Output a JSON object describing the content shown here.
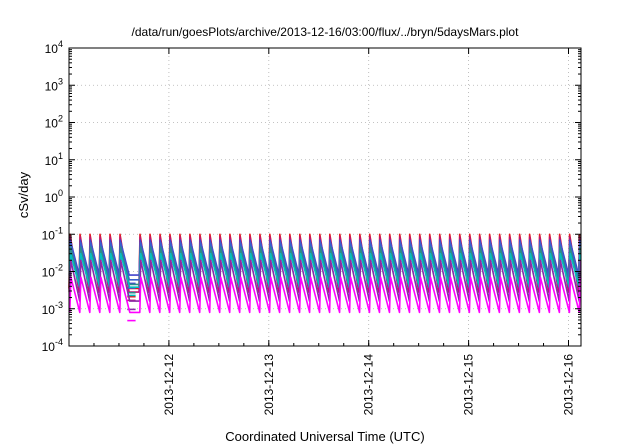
{
  "chart_data": {
    "type": "line",
    "title": "/data/run/goesPlots/archive/2013-12-16/03:00/flux/../bryn/5daysMars.plot",
    "xlabel": "Coordinated Universal Time (UTC)",
    "ylabel": "cSv/day",
    "yscale": "log",
    "ylim": [
      0.0001,
      10000
    ],
    "y_tick_labels": [
      {
        "base": "10",
        "exp": "-4"
      },
      {
        "base": "10",
        "exp": "-3"
      },
      {
        "base": "10",
        "exp": "-2"
      },
      {
        "base": "10",
        "exp": "-1"
      },
      {
        "base": "10",
        "exp": "0"
      },
      {
        "base": "10",
        "exp": "1"
      },
      {
        "base": "10",
        "exp": "2"
      },
      {
        "base": "10",
        "exp": "3"
      },
      {
        "base": "10",
        "exp": "4"
      }
    ],
    "xlim": [
      "2013-12-11T00:00",
      "2013-12-16T03:00"
    ],
    "x_tick_labels": [
      "2013-12-12",
      "2013-12-13",
      "2013-12-14",
      "2013-12-15",
      "2013-12-16"
    ],
    "grid": true,
    "legend": "none",
    "sawtooth": {
      "period_hours": 2.4,
      "rise_hours": 0.25,
      "data_gap": [
        "2013-12-11T14:00",
        "2013-12-11T16:00"
      ]
    },
    "series": [
      {
        "color": "#e41a1c",
        "peak": 0.1,
        "trough": 0.0035
      },
      {
        "color": "#c0146e",
        "peak": 0.085,
        "trough": 0.0028
      },
      {
        "color": "#4444cc",
        "peak": 0.07,
        "trough": 0.008
      },
      {
        "color": "#3a5fcd",
        "peak": 0.06,
        "trough": 0.006
      },
      {
        "color": "#2e8b8b",
        "peak": 0.045,
        "trough": 0.0045
      },
      {
        "color": "#00bfbf",
        "peak": 0.03,
        "trough": 0.0038
      },
      {
        "color": "#8b2aa8",
        "peak": 0.02,
        "trough": 0.0016
      },
      {
        "color": "#ff00ff",
        "peak": 0.007,
        "trough": 0.0008
      }
    ]
  }
}
